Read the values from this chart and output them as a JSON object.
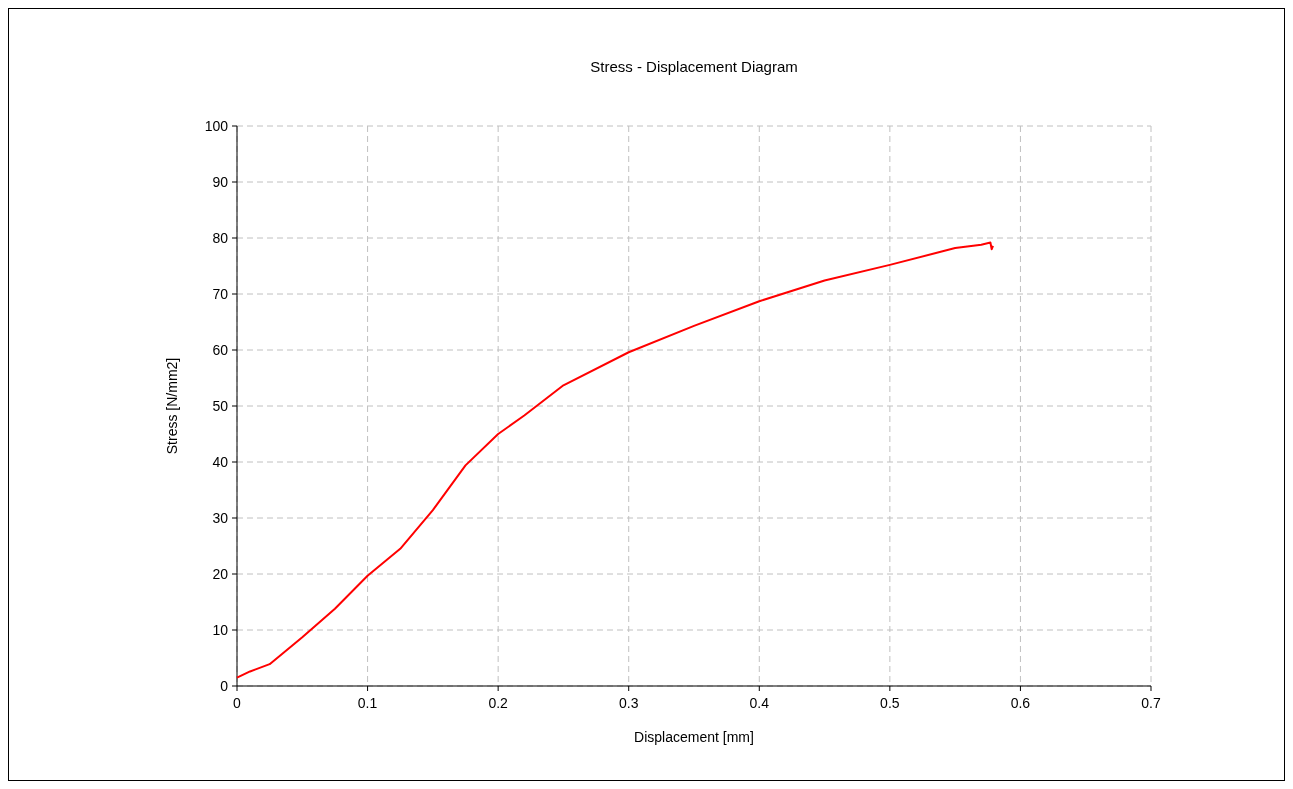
{
  "chart_data": {
    "type": "line",
    "title": "Stress - Displacement Diagram",
    "xlabel": "Displacement [mm]",
    "ylabel": "Stress [N/mm2]",
    "x": [
      0,
      0.01,
      0.025,
      0.05,
      0.075,
      0.1,
      0.125,
      0.15,
      0.175,
      0.2,
      0.22,
      0.25,
      0.3,
      0.35,
      0.4,
      0.45,
      0.5,
      0.55,
      0.57,
      0.577,
      0.578,
      0.579
    ],
    "series": [
      {
        "color": "#ff0000",
        "values": [
          1.5,
          2.6,
          3.9,
          8.7,
          13.8,
          19.7,
          24.5,
          31.4,
          39.4,
          45,
          48.3,
          53.7,
          59.6,
          64.3,
          68.7,
          72.4,
          75.2,
          78.2,
          78.8,
          79.2,
          78,
          78.6
        ]
      }
    ],
    "xlim": [
      0,
      0.7
    ],
    "xticks": [
      0,
      0.1,
      0.2,
      0.3,
      0.4,
      0.5,
      0.6,
      0.7
    ],
    "ylim": [
      0,
      100
    ],
    "yticks": [
      0,
      10,
      20,
      30,
      40,
      50,
      60,
      70,
      80,
      90,
      100
    ],
    "grid": true,
    "marker": "none",
    "line_style": "solid"
  }
}
